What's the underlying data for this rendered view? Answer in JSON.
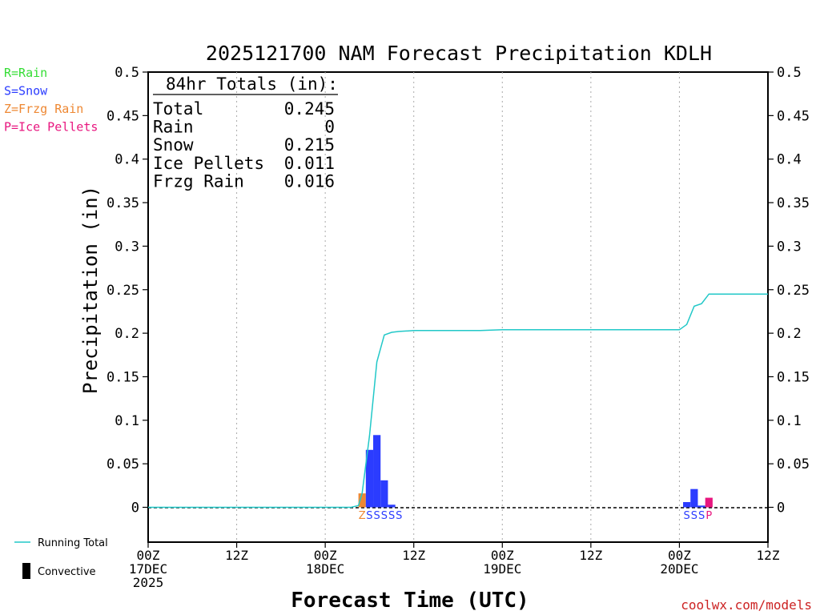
{
  "chart_data": {
    "type": "bar",
    "title": "2025121700 NAM Forecast Precipitation KDLH",
    "xlabel": "Forecast Time (UTC)",
    "ylabel": "Precipitation (in)",
    "ylim": [
      -0.04,
      0.5
    ],
    "yticks": [
      "0.5",
      "0.45",
      "0.4",
      "0.35",
      "0.3",
      "0.25",
      "0.2",
      "0.15",
      "0.1",
      "0.05",
      "0"
    ],
    "ytick_values": [
      0.5,
      0.45,
      0.4,
      0.35,
      0.3,
      0.25,
      0.2,
      0.15,
      0.1,
      0.05,
      0
    ],
    "xlim_hours": [
      0,
      84
    ],
    "xticks": [
      {
        "hour": 0,
        "line1": "00Z",
        "line2": "17DEC",
        "line3": "2025"
      },
      {
        "hour": 12,
        "line1": "12Z",
        "line2": "",
        "line3": ""
      },
      {
        "hour": 24,
        "line1": "00Z",
        "line2": "18DEC",
        "line3": ""
      },
      {
        "hour": 36,
        "line1": "12Z",
        "line2": "",
        "line3": ""
      },
      {
        "hour": 48,
        "line1": "00Z",
        "line2": "19DEC",
        "line3": ""
      },
      {
        "hour": 60,
        "line1": "12Z",
        "line2": "",
        "line3": ""
      },
      {
        "hour": 72,
        "line1": "00Z",
        "line2": "20DEC",
        "line3": ""
      },
      {
        "hour": 84,
        "line1": "12Z",
        "line2": "",
        "line3": ""
      }
    ],
    "legend_types": [
      {
        "label": "R=Rain",
        "color": "#33dd33"
      },
      {
        "label": "S=Snow",
        "color": "#2b3cff"
      },
      {
        "label": "Z=Frzg Rain",
        "color": "#ee8833"
      },
      {
        "label": "P=Ice Pellets",
        "color": "#e8167f"
      }
    ],
    "legend_series": {
      "running_total": "Running Total",
      "convective": "Convective"
    },
    "totals": {
      "header": "84hr Totals (in):",
      "rows": [
        {
          "label": "Total",
          "value": "0.245"
        },
        {
          "label": "Rain",
          "value": "0"
        },
        {
          "label": "Snow",
          "value": "0.215"
        },
        {
          "label": "Ice Pellets",
          "value": "0.011"
        },
        {
          "label": "Frzg Rain",
          "value": "0.016"
        }
      ]
    },
    "bars": [
      {
        "hour": 29,
        "value": 0.016,
        "type": "Z"
      },
      {
        "hour": 30,
        "value": 0.066,
        "type": "S"
      },
      {
        "hour": 31,
        "value": 0.083,
        "type": "S"
      },
      {
        "hour": 32,
        "value": 0.031,
        "type": "S"
      },
      {
        "hour": 33,
        "value": 0.003,
        "type": "S"
      },
      {
        "hour": 73,
        "value": 0.006,
        "type": "S"
      },
      {
        "hour": 74,
        "value": 0.021,
        "type": "S"
      },
      {
        "hour": 75,
        "value": 0.002,
        "type": "S"
      },
      {
        "hour": 76,
        "value": 0.011,
        "type": "P"
      }
    ],
    "type_markers": [
      {
        "hour": 29,
        "text": "Z"
      },
      {
        "hour": 30,
        "text": "S"
      },
      {
        "hour": 31,
        "text": "S"
      },
      {
        "hour": 32,
        "text": "S"
      },
      {
        "hour": 33,
        "text": "S"
      },
      {
        "hour": 34,
        "text": "S"
      },
      {
        "hour": 73,
        "text": "S"
      },
      {
        "hour": 74,
        "text": "S"
      },
      {
        "hour": 75,
        "text": "S"
      },
      {
        "hour": 76,
        "text": "P"
      }
    ],
    "running_total": {
      "x": [
        0,
        27.5,
        28.5,
        29,
        30,
        31,
        32,
        33,
        34,
        36,
        45,
        48,
        60,
        71,
        72,
        73,
        74,
        75,
        76,
        77,
        84
      ],
      "y": [
        0,
        0,
        0.002,
        0.016,
        0.082,
        0.167,
        0.198,
        0.201,
        0.202,
        0.203,
        0.203,
        0.204,
        0.204,
        0.204,
        0.204,
        0.21,
        0.231,
        0.234,
        0.245,
        0.245,
        0.245
      ]
    },
    "colors": {
      "Z": "#ee8833",
      "S": "#2b3cff",
      "P": "#e8167f",
      "R": "#33dd33",
      "running_total": "#22c8c8",
      "grid": "#aaaaaa",
      "credit": "#cc2222"
    }
  },
  "credit": "coolwx.com/models"
}
